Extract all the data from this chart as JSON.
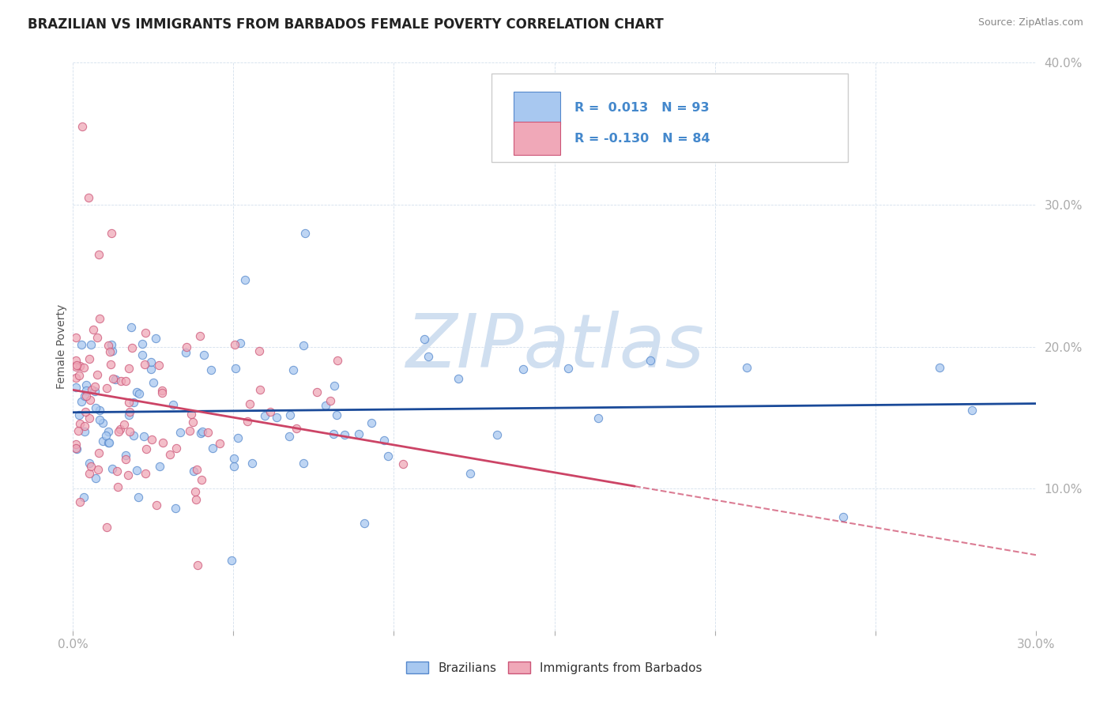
{
  "title": "BRAZILIAN VS IMMIGRANTS FROM BARBADOS FEMALE POVERTY CORRELATION CHART",
  "source": "Source: ZipAtlas.com",
  "ylabel": "Female Poverty",
  "xlim": [
    0.0,
    0.3
  ],
  "ylim": [
    0.0,
    0.4
  ],
  "xtick_vals": [
    0.0,
    0.05,
    0.1,
    0.15,
    0.2,
    0.25,
    0.3
  ],
  "ytick_vals": [
    0.0,
    0.1,
    0.2,
    0.3,
    0.4
  ],
  "color_blue_fill": "#a8c8f0",
  "color_blue_edge": "#5588cc",
  "color_pink_fill": "#f0a8b8",
  "color_pink_edge": "#cc5577",
  "color_trendline_blue": "#1a4a99",
  "color_trendline_pink": "#cc4466",
  "color_grid": "#c8d8e8",
  "color_watermark": "#d0dff0",
  "color_axis_text": "#4488cc",
  "background_color": "#ffffff",
  "title_fontsize": 12,
  "watermark_text": "ZIPatlas",
  "watermark_fontsize": 68,
  "legend_blue_text": "R =  0.013   N = 93",
  "legend_pink_text": "R = -0.130   N = 84",
  "seed1": 42,
  "seed2": 99,
  "n_blue": 93,
  "n_pink": 84
}
